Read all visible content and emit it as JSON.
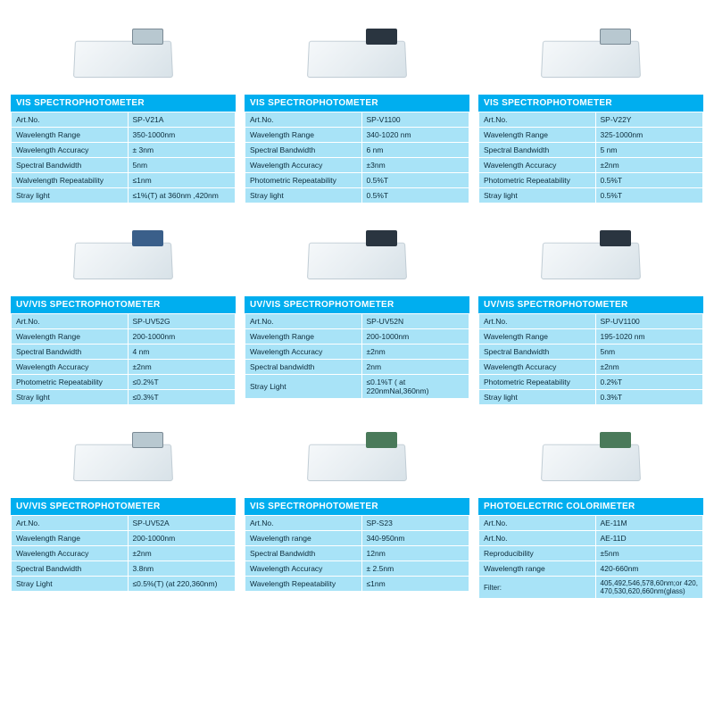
{
  "colors": {
    "header_bg": "#00aeef",
    "header_text": "#ffffff",
    "cell_bg": "#a8e3f7",
    "cell_border": "#ffffff",
    "cell_text": "#0a2a3a",
    "page_bg": "#ffffff"
  },
  "products": [
    {
      "title": "VIS SPECTROPHOTOMETER",
      "panel_style": "lcd",
      "specs": [
        [
          "Art.No.",
          "SP-V21A"
        ],
        [
          "Wavelength Range",
          "350-1000nm"
        ],
        [
          "Wavelength Accuracy",
          "± 3nm"
        ],
        [
          "Spectral Bandwidth",
          "5nm"
        ],
        [
          "Walvelength Repeatability",
          "≤1nm"
        ],
        [
          "Stray light",
          "≤1%(T) at 360nm ,420nm"
        ]
      ]
    },
    {
      "title": "VIS SPECTROPHOTOMETER",
      "panel_style": "dark",
      "specs": [
        [
          "Art.No.",
          "SP-V1100"
        ],
        [
          "Wavelength Range",
          "340-1020 nm"
        ],
        [
          "Spectral Bandwidth",
          "6 nm"
        ],
        [
          "Wavelength Accuracy",
          "±3nm"
        ],
        [
          "Photometric Repeatability",
          "0.5%T"
        ],
        [
          "Stray light",
          "0.5%T"
        ]
      ]
    },
    {
      "title": "VIS SPECTROPHOTOMETER",
      "panel_style": "lcd",
      "specs": [
        [
          "Art.No.",
          "SP-V22Y"
        ],
        [
          "Wavelength Range",
          "325-1000nm"
        ],
        [
          "Spectral Bandwidth",
          "5 nm"
        ],
        [
          "Wavelength Accuracy",
          "±2nm"
        ],
        [
          "Photometric Repeatability",
          "0.5%T"
        ],
        [
          "Stray light",
          "0.5%T"
        ]
      ]
    },
    {
      "title": "UV/VIS SPECTROPHOTOMETER",
      "panel_style": "blue",
      "specs": [
        [
          "Art.No.",
          "SP-UV52G"
        ],
        [
          "Wavelength Range",
          "200-1000nm"
        ],
        [
          "Spectral Bandwidth",
          "4 nm"
        ],
        [
          "Wavelength Accuracy",
          "±2nm"
        ],
        [
          "Photometric Repeatability",
          "≤0.2%T"
        ],
        [
          "Stray light",
          "≤0.3%T"
        ]
      ]
    },
    {
      "title": "UV/VIS SPECTROPHOTOMETER",
      "panel_style": "dark",
      "specs": [
        [
          "Art.No.",
          "SP-UV52N"
        ],
        [
          "Wavelength Range",
          "200-1000nm"
        ],
        [
          "Wavelength Accuracy",
          "±2nm"
        ],
        [
          "Spectral bandwidth",
          "2nm"
        ],
        [
          "Stray Light",
          "≤0.1%T ( at 220nmNal,360nm)"
        ]
      ]
    },
    {
      "title": "UV/VIS SPECTROPHOTOMETER",
      "panel_style": "dark",
      "specs": [
        [
          "Art.No.",
          "SP-UV1100"
        ],
        [
          "Wavelength Range",
          "195-1020 nm"
        ],
        [
          "Spectral Bandwidth",
          "5nm"
        ],
        [
          "Wavelength Accuracy",
          "±2nm"
        ],
        [
          "Photometric Repeatability",
          "0.2%T"
        ],
        [
          "Stray light",
          "0.3%T"
        ]
      ]
    },
    {
      "title": "UV/VIS SPECTROPHOTOMETER",
      "panel_style": "lcd",
      "specs": [
        [
          "Art.No.",
          "SP-UV52A"
        ],
        [
          "Wavelength Range",
          "200-1000nm"
        ],
        [
          "Wavelength Accuracy",
          "±2nm"
        ],
        [
          "Spectral Bandwidth",
          "3.8nm"
        ],
        [
          "Stray Light",
          "≤0.5%(T) (at 220,360nm)"
        ]
      ]
    },
    {
      "title": "VIS SPECTROPHOTOMETER",
      "panel_style": "green",
      "specs": [
        [
          "Art.No.",
          "SP-S23"
        ],
        [
          "Wavelength range",
          "340-950nm"
        ],
        [
          "Spectral Bandwidth",
          "12nm"
        ],
        [
          "Wavelength Accuracy",
          "± 2.5nm"
        ],
        [
          "Wavelength Repeatability",
          "≤1nm"
        ]
      ]
    },
    {
      "title": "PHOTOELECTRIC COLORIMETER",
      "panel_style": "green",
      "specs": [
        [
          "Art.No.",
          "AE-11M"
        ],
        [
          "Art.No.",
          "AE-11D"
        ],
        [
          "Reproducibility",
          "±5nm"
        ],
        [
          "Wavelength range",
          "420-660nm"
        ]
      ],
      "footer": {
        "label": "Filter:",
        "value": "405,492,546,578,60nm;or 420, 470,530,620,660nm(glass)"
      }
    }
  ]
}
